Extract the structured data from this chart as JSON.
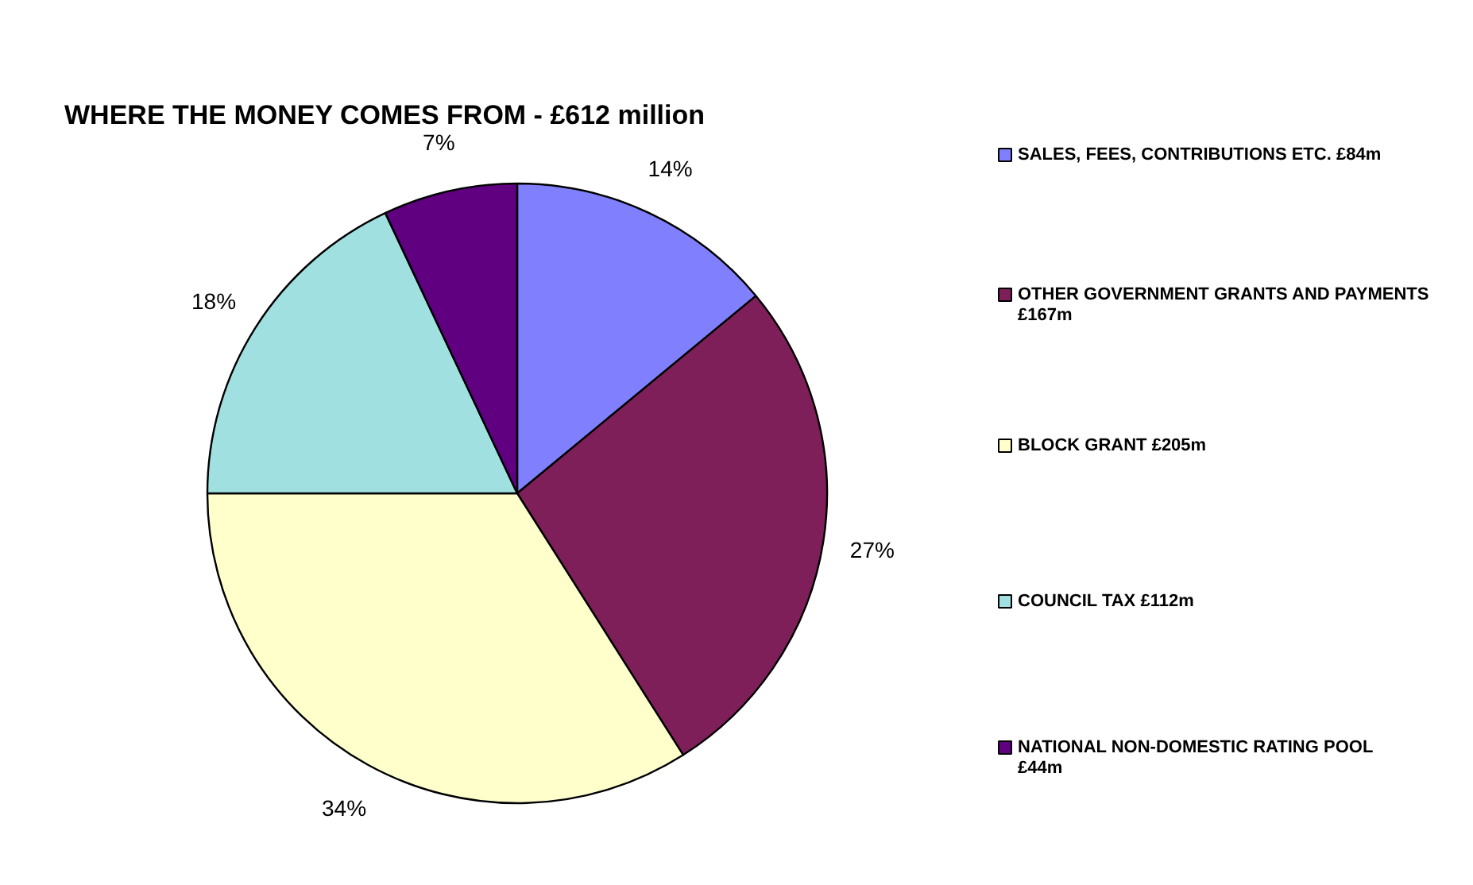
{
  "chart_data": {
    "type": "pie",
    "title": "WHERE THE MONEY COMES FROM - £612 million",
    "categories": [
      "SALES, FEES, CONTRIBUTIONS ETC. £84m",
      "OTHER GOVERNMENT GRANTS AND PAYMENTS £167m",
      "BLOCK GRANT £205m",
      "COUNCIL TAX £112m",
      "NATIONAL NON-DOMESTIC RATING POOL £44m"
    ],
    "values": [
      14,
      27,
      34,
      18,
      7
    ],
    "colors": [
      "#8080ff",
      "#7f1f5a",
      "#ffffcc",
      "#a0e0e0",
      "#600080"
    ],
    "value_labels": [
      "14%",
      "27%",
      "34%",
      "18%",
      "7%"
    ],
    "legend": "right"
  }
}
